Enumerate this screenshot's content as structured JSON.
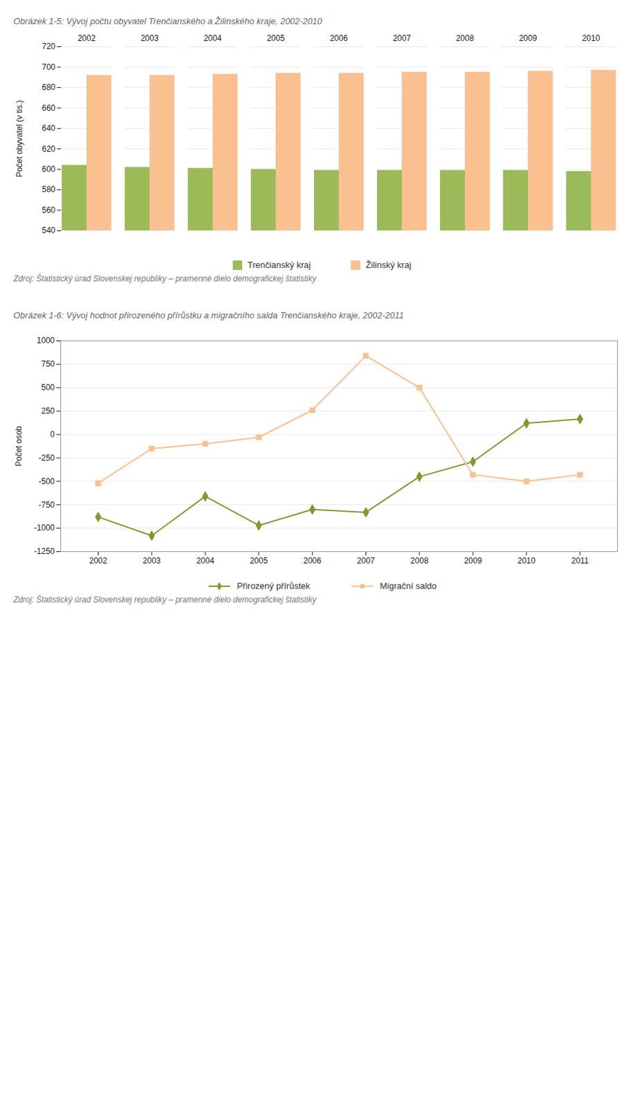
{
  "chart_data": [
    {
      "type": "bar",
      "title": "Obrázek 1-5: Vývoj počtu obyvatel Trenčianského a Žilinského kraje, 2002-2010",
      "ylabel": "Počet obyvatel (v tis.)",
      "categories": [
        2002,
        2003,
        2004,
        2005,
        2006,
        2007,
        2008,
        2009,
        2010
      ],
      "series": [
        {
          "name": "Trenčianský kraj",
          "color": "#9BBB59",
          "values": [
            604,
            602,
            601,
            600,
            599,
            599,
            599,
            599,
            598
          ]
        },
        {
          "name": "Žilinský kraj",
          "color": "#FAC090",
          "values": [
            692,
            692,
            693,
            694,
            694,
            695,
            695,
            696,
            697
          ]
        }
      ],
      "ylim": [
        540,
        720
      ],
      "yticks": [
        540,
        560,
        580,
        600,
        620,
        640,
        660,
        680,
        700,
        720
      ],
      "grid": true,
      "legend": "bottom",
      "annotations": [
        "Zdroj: Štatistický úrad Slovenskej republiky – pramenné dielo demografickej štatistiky"
      ]
    },
    {
      "type": "line",
      "title": "Obrázek 1-6: Vývoj hodnot přirozeného přírůstku a migračního salda Trenčianského kraje, 2002-2011",
      "ylabel": "Počet osob",
      "x": [
        2002,
        2003,
        2004,
        2005,
        2006,
        2007,
        2008,
        2009,
        2010,
        2011
      ],
      "xlim": [
        2001.3,
        2011.7
      ],
      "xticks": [
        2002,
        2003,
        2004,
        2005,
        2006,
        2007,
        2008,
        2009,
        2010,
        2011
      ],
      "series": [
        {
          "name": "Přirozený přírůstek",
          "color": "#7F9A2E",
          "marker": "diamond",
          "values": [
            -880,
            -1080,
            -660,
            -970,
            -800,
            -830,
            -450,
            -290,
            120,
            165
          ]
        },
        {
          "name": "Migrační saldo",
          "color": "#FAC090",
          "marker": "square",
          "values": [
            -520,
            -150,
            -100,
            -30,
            260,
            840,
            500,
            -430,
            -500,
            -430
          ]
        }
      ],
      "ylim": [
        -1250,
        1000
      ],
      "yticks": [
        -1250,
        -1000,
        -750,
        -500,
        -250,
        0,
        250,
        500,
        750,
        1000
      ],
      "grid": true,
      "legend": "bottom",
      "annotations": [
        "Zdroj: Štatistický úrad Slovenskej republiky – pramenné dielo demografickej štatistiky"
      ]
    }
  ]
}
